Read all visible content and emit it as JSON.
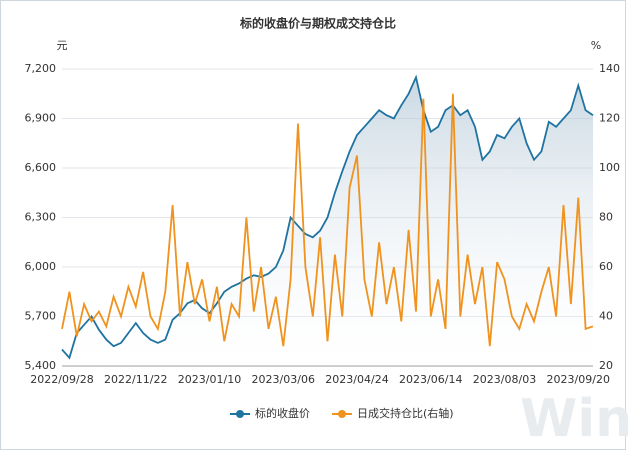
{
  "chart_data": {
    "type": "line",
    "title": "标的收盘价与期权成交持仓比",
    "y_unit": "元",
    "y2_unit": "%",
    "watermark": "Win.d",
    "categories": [
      "2022/09/28",
      null,
      null,
      null,
      null,
      null,
      null,
      null,
      null,
      null,
      "2022/11/22",
      null,
      null,
      null,
      null,
      null,
      null,
      null,
      null,
      null,
      "2023/01/10",
      null,
      null,
      null,
      null,
      null,
      null,
      null,
      null,
      null,
      "2023/03/06",
      null,
      null,
      null,
      null,
      null,
      null,
      null,
      null,
      null,
      "2023/04/24",
      null,
      null,
      null,
      null,
      null,
      null,
      null,
      null,
      null,
      "2023/06/14",
      null,
      null,
      null,
      null,
      null,
      null,
      null,
      null,
      null,
      "2023/08/03",
      null,
      null,
      null,
      null,
      null,
      null,
      null,
      null,
      null,
      "2023/09/20",
      null,
      null
    ],
    "series": [
      {
        "name": "标的收盘价",
        "color": "#1f73a0",
        "area": true,
        "values": [
          5500,
          5450,
          5600,
          5650,
          5700,
          5620,
          5560,
          5520,
          5540,
          5600,
          5660,
          5600,
          5560,
          5540,
          5560,
          5680,
          5720,
          5780,
          5800,
          5750,
          5720,
          5780,
          5850,
          5880,
          5900,
          5930,
          5950,
          5940,
          5960,
          6000,
          6100,
          6300,
          6250,
          6200,
          6180,
          6220,
          6300,
          6450,
          6580,
          6700,
          6800,
          6850,
          6900,
          6950,
          6920,
          6900,
          6980,
          7050,
          7150,
          6950,
          6820,
          6850,
          6950,
          6980,
          6920,
          6950,
          6850,
          6650,
          6700,
          6800,
          6780,
          6850,
          6900,
          6750,
          6650,
          6700,
          6880,
          6850,
          6900,
          6950,
          7100,
          6950,
          6920
        ]
      },
      {
        "name": "日成交持仓比(右轴)",
        "color": "#f0921e",
        "axis": "y2",
        "values": [
          35,
          50,
          32,
          45,
          38,
          42,
          36,
          48,
          40,
          52,
          44,
          58,
          40,
          35,
          50,
          85,
          40,
          62,
          45,
          55,
          38,
          52,
          30,
          45,
          40,
          80,
          42,
          60,
          35,
          48,
          28,
          55,
          118,
          60,
          40,
          72,
          30,
          65,
          40,
          92,
          105,
          55,
          40,
          70,
          45,
          60,
          38,
          75,
          42,
          128,
          40,
          55,
          35,
          130,
          40,
          65,
          45,
          60,
          28,
          62,
          55,
          40,
          35,
          45,
          38,
          50,
          60,
          40,
          85,
          45,
          88,
          35,
          36
        ]
      }
    ],
    "ylim": [
      5400,
      7200
    ],
    "yticks": [
      {
        "value": 5400,
        "label": "5,400"
      },
      {
        "value": 5700,
        "label": "5,700"
      },
      {
        "value": 6000,
        "label": "6,000"
      },
      {
        "value": 6300,
        "label": "6,300"
      },
      {
        "value": 6600,
        "label": "6,600"
      },
      {
        "value": 6900,
        "label": "6,900"
      },
      {
        "value": 7200,
        "label": "7,200"
      }
    ],
    "y2lim": [
      20,
      140
    ],
    "y2ticks": [
      20,
      40,
      60,
      80,
      100,
      120,
      140
    ],
    "grid": true,
    "legend": "bottom"
  }
}
